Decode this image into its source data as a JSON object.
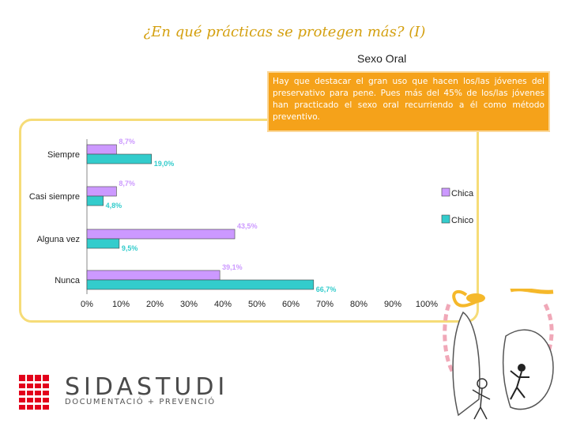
{
  "slide": {
    "title": "¿En qué prácticas se protegen más? (I)",
    "subtitle": "Sexo Oral",
    "note": "Hay que destacar el gran uso que hacen los/las jóvenes del preservativo para pene. Pues más del 45% de los/las jóvenes han practicado el sexo oral recurriendo a él como método preventivo."
  },
  "logo": {
    "brand_a": "SIDA",
    "brand_b": "STUDI",
    "tagline": "DOCUMENTACIÓ + PREVENCIÓ"
  },
  "colors": {
    "title": "#d4a010",
    "chica": "#cc99ff",
    "chico": "#33cccc",
    "note_bg": "#f5a21a",
    "frame": "#f6dc78",
    "logo_red": "#e3001b"
  },
  "chart_data": {
    "type": "bar",
    "orientation": "horizontal",
    "categories": [
      "Siempre",
      "Casi siempre",
      "Alguna vez",
      "Nunca"
    ],
    "series": [
      {
        "name": "Chica",
        "values": [
          8.7,
          8.7,
          43.5,
          39.1
        ],
        "labels": [
          "8,7%",
          "8,7%",
          "43,5%",
          "39,1%"
        ],
        "color": "#cc99ff"
      },
      {
        "name": "Chico",
        "values": [
          19.0,
          4.8,
          9.5,
          66.7
        ],
        "labels": [
          "19,0%",
          "4,8%",
          "9,5%",
          "66,7%"
        ],
        "color": "#33cccc"
      }
    ],
    "xlim": [
      0,
      100
    ],
    "xticks": [
      "0%",
      "10%",
      "20%",
      "30%",
      "40%",
      "50%",
      "60%",
      "70%",
      "80%",
      "90%",
      "100%"
    ],
    "grid": false,
    "legend": "right"
  }
}
